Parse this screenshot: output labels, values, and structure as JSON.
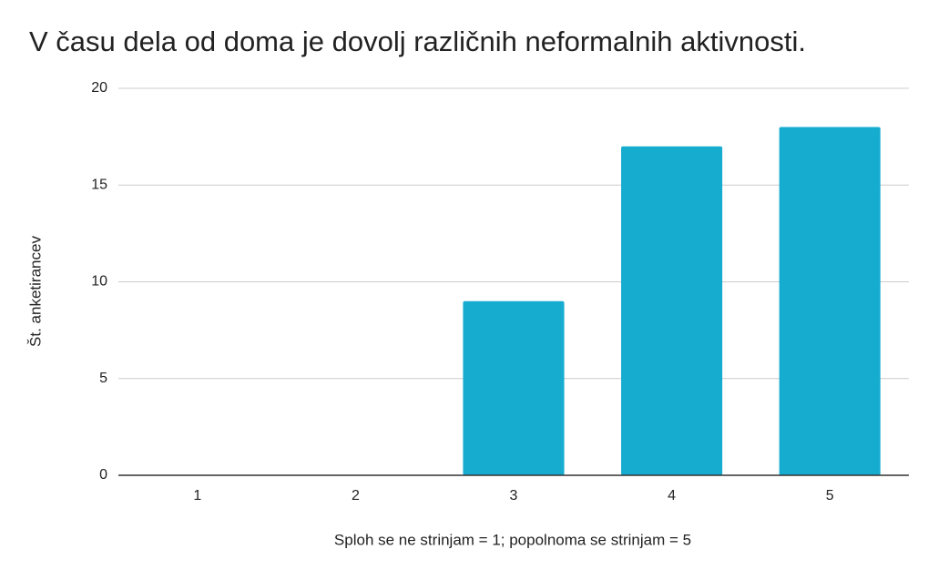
{
  "chart_data": {
    "type": "bar",
    "title": "V času dela od doma je dovolj različnih neformalnih aktivnosti.",
    "x_label": "Sploh se ne strinjam = 1; popolnoma se strinjam = 5",
    "y_label": "Št. anketirancev",
    "categories": [
      "1",
      "2",
      "3",
      "4",
      "5"
    ],
    "values": [
      0,
      0,
      9,
      17,
      18
    ],
    "color": "#16acd0",
    "ylim": [
      0,
      20
    ],
    "yticks": [
      0,
      5,
      10,
      15,
      20
    ],
    "grid": true
  }
}
